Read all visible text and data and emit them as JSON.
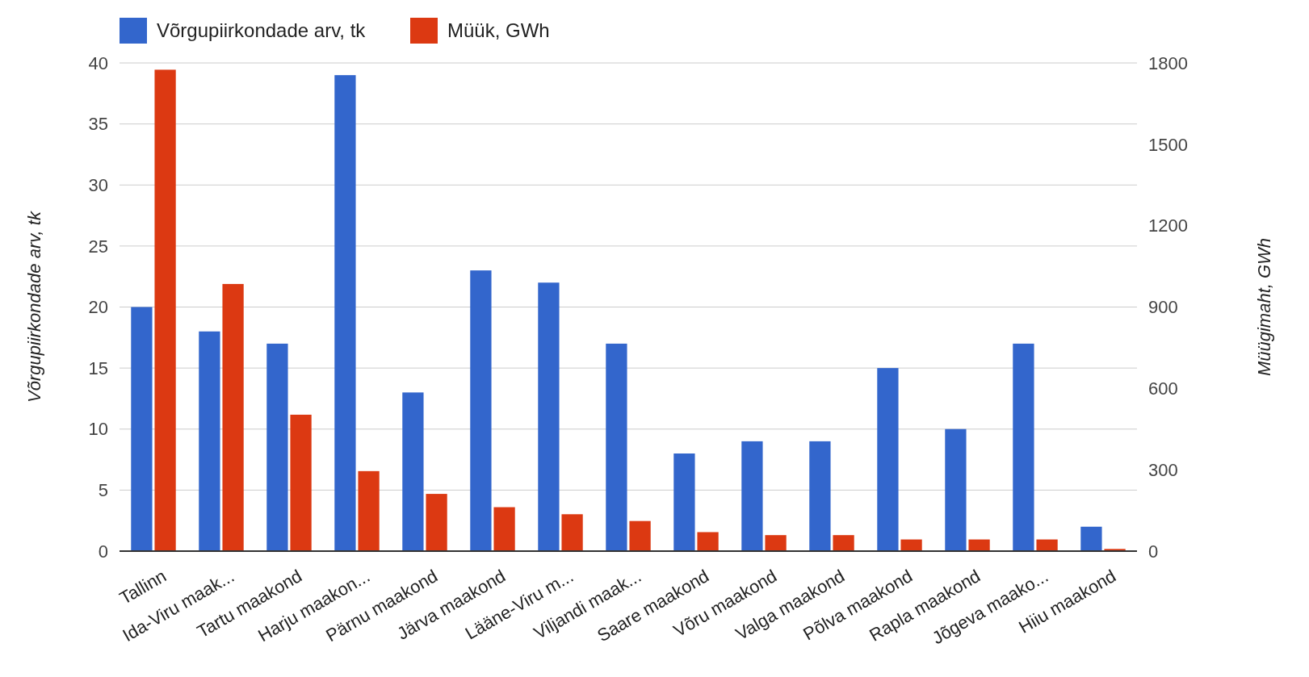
{
  "chart_data": {
    "type": "bar",
    "categories": [
      "Tallinn",
      "Ida-Viru maak...",
      "Tartu maakond",
      "Harju maakon...",
      "Pärnu maakond",
      "Järva maakond",
      "Lääne-Viru m...",
      "Viljandi maak...",
      "Saare maakond",
      "Võru maakond",
      "Valga maakond",
      "Põlva maakond",
      "Rapla maakond",
      "Jõgeva maako...",
      "Hiiu maakond"
    ],
    "series": [
      {
        "name": "Võrgupiirkondade arv, tk",
        "color": "#3366cc",
        "values": [
          20,
          18,
          17,
          39,
          13,
          23,
          22,
          17,
          8,
          9,
          9,
          15,
          10,
          17,
          2
        ]
      },
      {
        "name": "Müük, GWh",
        "color": "#dc3912",
        "axis": "y2",
        "values": [
          1775,
          985,
          503,
          295,
          211,
          162,
          136,
          111,
          70,
          59,
          59,
          43,
          43,
          43,
          8
        ]
      }
    ],
    "ylabel": "Võrgupiirkondade arv, tk",
    "y2label": "Müügimaht, GWh",
    "ylim": [
      0,
      40
    ],
    "yticks": [
      0,
      5,
      10,
      15,
      20,
      25,
      30,
      35,
      40
    ],
    "y2lim": [
      0,
      1800
    ],
    "y2ticks": [
      0,
      300,
      600,
      900,
      1200,
      1500,
      1800
    ],
    "grid": "y",
    "legend": "top left"
  }
}
